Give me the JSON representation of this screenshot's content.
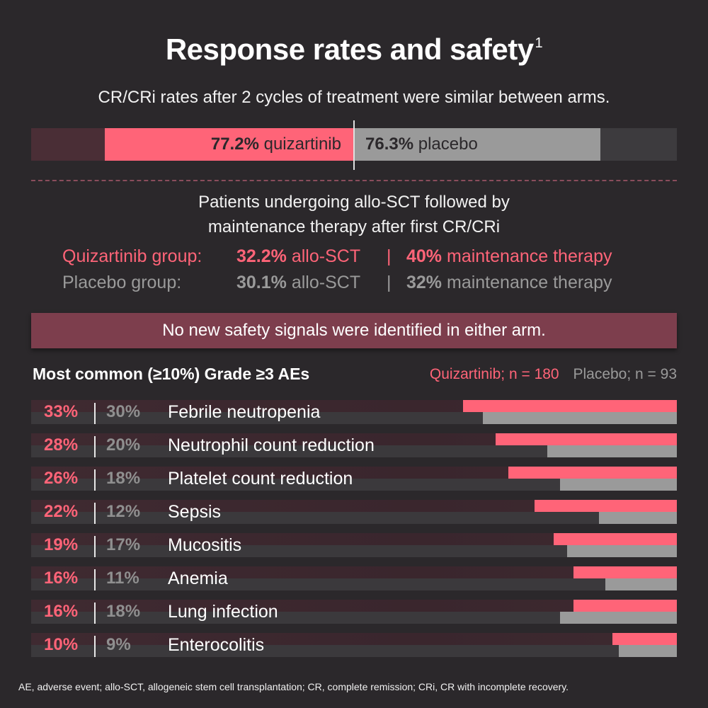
{
  "title": "Response rates and safety",
  "title_superscript": "1",
  "subtitle": "CR/CRi rates after 2 cycles of treatment were similar between arms.",
  "colors": {
    "quizartinib": "#ff6478",
    "placebo": "#9a9a9a",
    "background": "#2b282b",
    "banner": "#7d3e4d"
  },
  "cr_rates": {
    "quizartinib": {
      "value": 77.2,
      "value_text": "77.2%",
      "label": "quizartinib"
    },
    "placebo": {
      "value": 76.3,
      "value_text": "76.3%",
      "label": "placebo"
    }
  },
  "allo_sct": {
    "heading_line1": "Patients undergoing allo-SCT followed by",
    "heading_line2": "maintenance therapy after first CR/CRi",
    "groups": [
      {
        "label": "Quizartinib group:",
        "allo_value": "32.2%",
        "allo_label": "allo-SCT",
        "separator": "|",
        "maint_value": "40%",
        "maint_label": "maintenance therapy"
      },
      {
        "label": "Placebo group:",
        "allo_value": "30.1%",
        "allo_label": "allo-SCT",
        "separator": "|",
        "maint_value": "32%",
        "maint_label": "maintenance therapy"
      }
    ]
  },
  "banner": "No new safety signals were identified in either arm.",
  "ae_section": {
    "heading": "Most common (≥10%) Grade ≥3 AEs",
    "legend_quizartinib": "Quizartinib; n = 180",
    "legend_placebo": "Placebo; n = 93"
  },
  "chart_data": {
    "type": "bar",
    "title": "Most common (≥10%) Grade ≥3 AEs",
    "xlabel": "",
    "ylabel": "",
    "unit": "%",
    "orientation": "horizontal",
    "legend": "top-right",
    "categories": [
      "Febrile neutropenia",
      "Neutrophil count reduction",
      "Platelet count reduction",
      "Sepsis",
      "Mucositis",
      "Anemia",
      "Lung infection",
      "Enterocolitis"
    ],
    "series": [
      {
        "name": "Quizartinib; n = 180",
        "color": "#ff6478",
        "values": [
          33,
          28,
          26,
          22,
          19,
          16,
          16,
          10
        ]
      },
      {
        "name": "Placebo; n = 93",
        "color": "#9a9a9a",
        "values": [
          30,
          20,
          18,
          12,
          17,
          11,
          18,
          9
        ]
      }
    ],
    "xlim": [
      0,
      100
    ]
  },
  "footnote": "AE, adverse event; allo-SCT, allogeneic stem cell transplantation; CR, complete remission; CRi, CR with incomplete recovery."
}
